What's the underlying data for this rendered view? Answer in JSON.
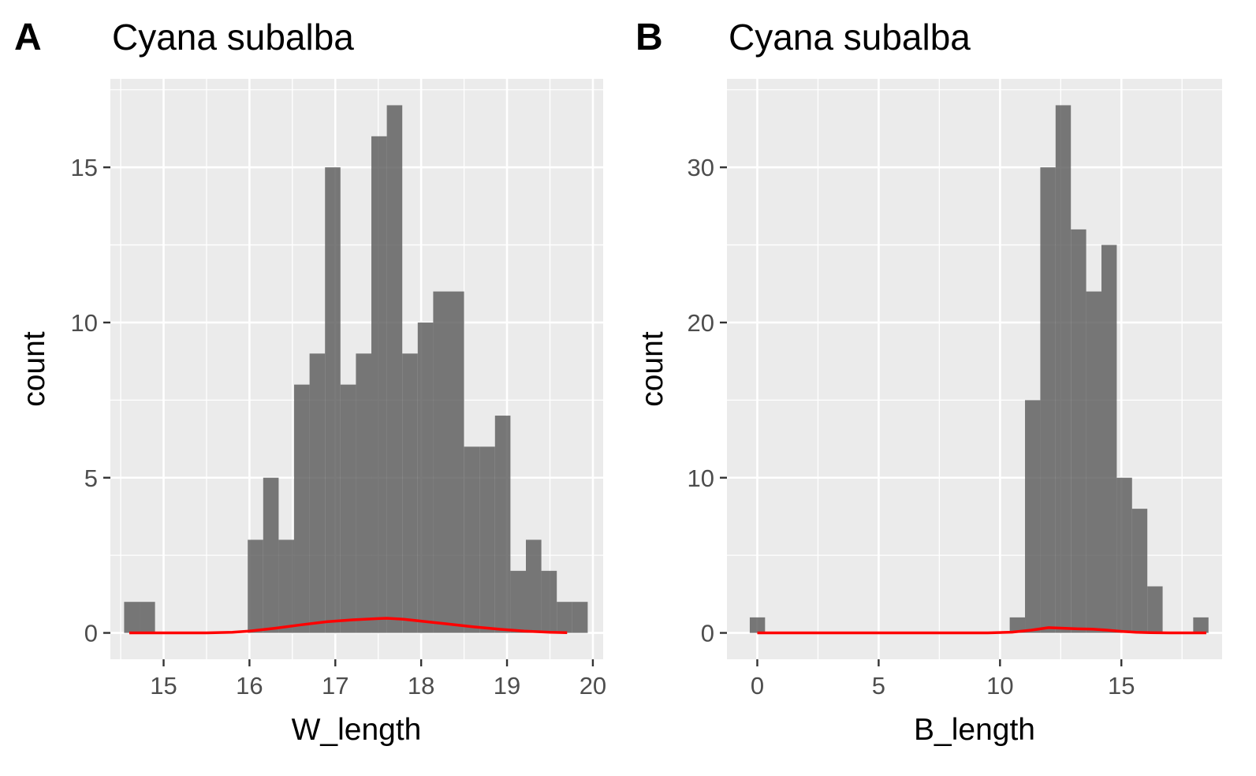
{
  "chart_data": [
    {
      "type": "bar",
      "tag": "A",
      "title": "Cyana subalba",
      "xlabel": "W_length",
      "ylabel": "count",
      "xlim": [
        14.38,
        20.12
      ],
      "ylim": [
        -0.85,
        17.85
      ],
      "x_ticks": [
        15,
        16,
        17,
        18,
        19,
        20
      ],
      "x_tick_labels": [
        "15",
        "16",
        "17",
        "18",
        "19",
        "20"
      ],
      "y_ticks": [
        0,
        5,
        10,
        15
      ],
      "y_tick_labels": [
        "0",
        "5",
        "10",
        "15"
      ],
      "grid": true,
      "bin_width": 0.18,
      "bin_start": 14.54,
      "values": [
        1,
        1,
        0,
        0,
        0,
        0,
        0,
        0,
        3,
        5,
        3,
        8,
        9,
        15,
        8,
        9,
        16,
        17,
        9,
        10,
        11,
        11,
        6,
        6,
        7,
        2,
        3,
        2,
        1,
        1
      ],
      "density_line": {
        "color": "#ff0000",
        "x": [
          14.6,
          15.0,
          15.5,
          15.8,
          16.0,
          16.3,
          16.6,
          16.9,
          17.2,
          17.5,
          17.6,
          17.8,
          18.0,
          18.3,
          18.6,
          18.9,
          19.2,
          19.5,
          19.7
        ],
        "y": [
          0.0,
          0.0,
          0.0,
          0.02,
          0.06,
          0.15,
          0.26,
          0.36,
          0.42,
          0.46,
          0.47,
          0.44,
          0.38,
          0.29,
          0.2,
          0.12,
          0.06,
          0.02,
          0.01
        ]
      }
    },
    {
      "type": "bar",
      "tag": "B",
      "title": "Cyana subalba",
      "xlabel": "B_length",
      "ylabel": "count",
      "xlim": [
        -1.25,
        19.15
      ],
      "ylim": [
        -1.7,
        35.7
      ],
      "x_ticks": [
        0,
        5,
        10,
        15
      ],
      "x_tick_labels": [
        "0",
        "5",
        "10",
        "15"
      ],
      "y_ticks": [
        0,
        10,
        20,
        30
      ],
      "y_tick_labels": [
        "0",
        "10",
        "20",
        "30"
      ],
      "grid": true,
      "bin_width": 0.63,
      "bin_start": -0.31,
      "values": [
        1,
        0,
        0,
        0,
        0,
        0,
        0,
        0,
        0,
        0,
        0,
        0,
        0,
        0,
        0,
        0,
        0,
        1,
        15,
        30,
        34,
        26,
        22,
        25,
        10,
        8,
        3,
        0,
        0,
        1
      ],
      "density_line": {
        "color": "#ff0000",
        "x": [
          0,
          5,
          9.5,
          10.5,
          11.3,
          12.0,
          12.6,
          13.2,
          13.8,
          14.4,
          15.0,
          15.6,
          16.2,
          17.0,
          18.5
        ],
        "y": [
          0.0,
          0.0,
          0.0,
          0.05,
          0.18,
          0.34,
          0.3,
          0.26,
          0.24,
          0.18,
          0.1,
          0.04,
          0.01,
          0.0,
          0.0
        ]
      }
    }
  ]
}
